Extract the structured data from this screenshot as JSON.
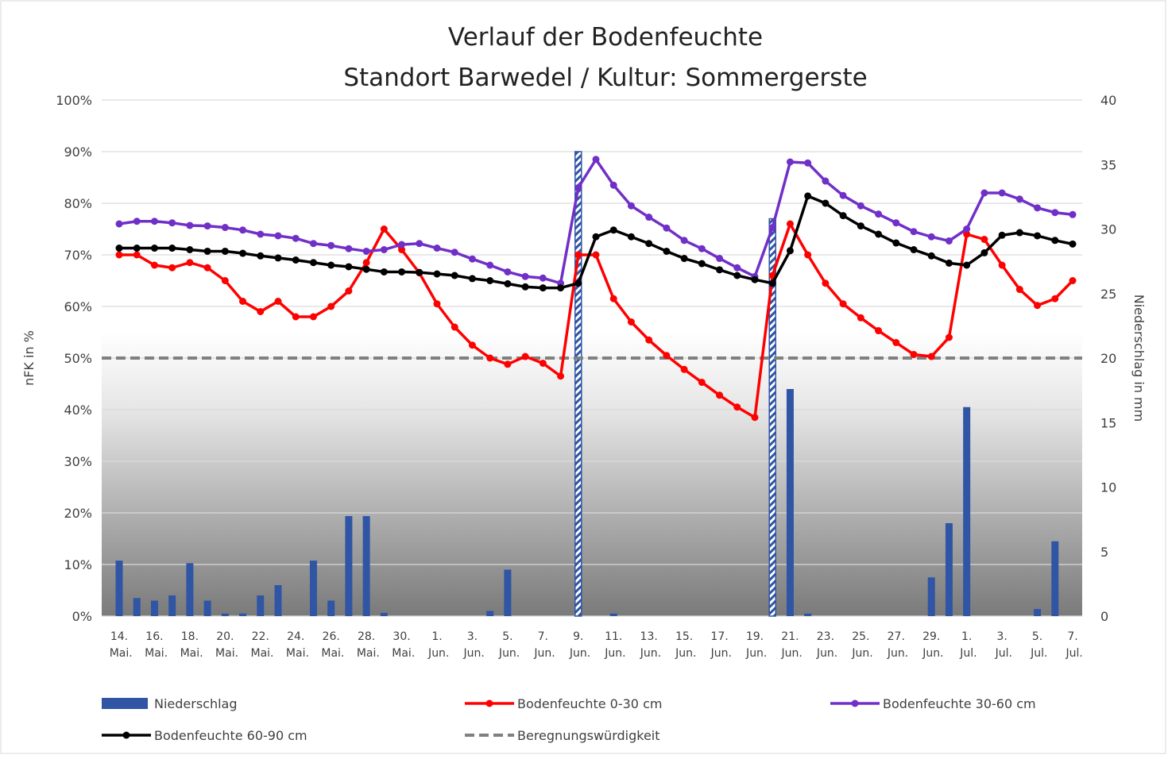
{
  "chart_data": {
    "type": "combo",
    "title": "Verlauf der Bodenfeuchte",
    "subtitle": "Standort Barwedel / Kultur: Sommergerste",
    "ylabel": "nFK in %",
    "y2label": "Niederschlag in mm",
    "categories": [
      "14. Mai.",
      null,
      "16. Mai.",
      null,
      "18. Mai.",
      null,
      "20. Mai.",
      null,
      "22. Mai.",
      null,
      "24. Mai.",
      null,
      "26. Mai.",
      null,
      "28. Mai.",
      null,
      "30. Mai.",
      null,
      "1. Jun.",
      null,
      "3. Jun.",
      null,
      "5. Jun.",
      null,
      "7. Jun.",
      null,
      "9. Jun.",
      null,
      "11. Jun.",
      null,
      "13. Jun.",
      null,
      "15. Jun.",
      null,
      "17. Jun.",
      null,
      "19. Jun.",
      null,
      "21. Jun.",
      null,
      "23. Jun.",
      null,
      "25. Jun.",
      null,
      "27. Jun.",
      null,
      "29. Jun.",
      null,
      "1. Jul.",
      null,
      "3. Jul.",
      null,
      "5. Jul.",
      null,
      "7. Jul."
    ],
    "ylim": [
      0,
      100
    ],
    "yticks": [
      {
        "value": 0,
        "label": "0%"
      },
      {
        "value": 10,
        "label": "10%"
      },
      {
        "value": 20,
        "label": "20%"
      },
      {
        "value": 30,
        "label": "30%"
      },
      {
        "value": 40,
        "label": "40%"
      },
      {
        "value": 50,
        "label": "50%"
      },
      {
        "value": 60,
        "label": "60%"
      },
      {
        "value": 70,
        "label": "70%"
      },
      {
        "value": 80,
        "label": "80%"
      },
      {
        "value": 90,
        "label": "90%"
      },
      {
        "value": 100,
        "label": "100%"
      }
    ],
    "y2lim": [
      0,
      40
    ],
    "y2ticks": [
      0,
      5,
      10,
      15,
      20,
      25,
      30,
      35,
      40
    ],
    "grid": true,
    "legend": "bottom",
    "series": [
      {
        "name": "Niederschlag",
        "type": "bar",
        "axis": "y2",
        "color": "#2f55a4",
        "values": [
          4.3,
          1.4,
          1.2,
          1.6,
          4.1,
          1.2,
          0.2,
          0.2,
          1.6,
          2.4,
          0,
          4.3,
          1.2,
          7.75,
          7.75,
          0.25,
          0,
          0,
          0,
          0,
          0,
          0.4,
          3.6,
          0,
          0,
          0,
          0,
          0,
          0.2,
          0,
          0,
          0,
          0,
          0,
          0,
          0,
          0,
          0,
          17.6,
          0.2,
          0,
          0,
          0,
          0,
          0,
          0,
          3,
          7.2,
          16.2,
          0,
          0,
          0,
          0.55,
          5.8,
          0
        ]
      },
      {
        "type": "bar",
        "axis": "y2",
        "color": "#2f55a4",
        "hatched": true,
        "values": [
          0,
          0,
          0,
          0,
          0,
          0,
          0,
          0,
          0,
          0,
          0,
          0,
          0,
          0,
          0,
          0,
          0,
          0,
          0,
          0,
          0,
          0,
          0,
          0,
          0,
          0,
          36,
          0,
          0,
          0,
          0,
          0,
          0,
          0,
          0,
          0,
          0,
          30.8,
          0,
          0,
          0,
          0,
          0,
          0,
          0,
          0,
          0,
          0,
          0,
          0,
          0,
          0,
          0,
          0,
          0
        ]
      },
      {
        "name": "Bodenfeuchte 0-30 cm",
        "type": "line",
        "color": "#ff0000",
        "values": [
          70,
          70,
          68,
          67.5,
          68.5,
          67.5,
          65,
          61,
          59,
          61,
          58,
          58,
          60,
          63,
          68.5,
          75,
          71,
          66.5,
          60.5,
          56,
          52.5,
          50,
          48.8,
          50.3,
          49,
          46.5,
          70,
          70,
          61.5,
          57,
          53.5,
          50.5,
          47.8,
          45.3,
          42.8,
          40.5,
          38.5,
          66,
          76,
          70,
          64.5,
          60.5,
          57.8,
          55.3,
          53,
          50.7,
          50.3,
          54,
          74,
          73,
          68,
          63.3,
          60.2,
          61.5,
          65
        ]
      },
      {
        "name": "Bodenfeuchte 30-60 cm",
        "type": "line",
        "color": "#7030c8",
        "values": [
          76,
          76.5,
          76.5,
          76.2,
          75.7,
          75.6,
          75.3,
          74.8,
          74,
          73.7,
          73.2,
          72.2,
          71.8,
          71.2,
          70.7,
          71,
          72,
          72.2,
          71.3,
          70.5,
          69.2,
          68,
          66.7,
          65.8,
          65.5,
          64.5,
          83,
          88.5,
          83.5,
          79.5,
          77.3,
          75.2,
          72.8,
          71.2,
          69.3,
          67.5,
          65.8,
          75.3,
          88,
          87.8,
          84.3,
          81.5,
          79.5,
          77.9,
          76.2,
          74.5,
          73.5,
          72.7,
          75,
          82,
          82,
          80.8,
          79.1,
          78.2,
          77.8
        ]
      },
      {
        "name": "Bodenfeuchte 60-90 cm",
        "type": "line",
        "color": "#000000",
        "values": [
          71.3,
          71.3,
          71.3,
          71.3,
          71,
          70.7,
          70.7,
          70.3,
          69.8,
          69.4,
          69,
          68.5,
          68,
          67.7,
          67.2,
          66.7,
          66.7,
          66.6,
          66.3,
          66,
          65.4,
          65,
          64.4,
          63.8,
          63.6,
          63.6,
          64.5,
          73.5,
          74.8,
          73.5,
          72.2,
          70.7,
          69.3,
          68.3,
          67.1,
          66,
          65.2,
          64.5,
          70.8,
          81.4,
          80,
          77.6,
          75.6,
          74,
          72.3,
          71,
          69.8,
          68.4,
          68,
          70.4,
          73.8,
          74.3,
          73.7,
          72.8,
          72.1
        ]
      }
    ],
    "threshold": {
      "name": "Beregnungswürdigkeit",
      "value": 50,
      "color": "#808080"
    }
  }
}
